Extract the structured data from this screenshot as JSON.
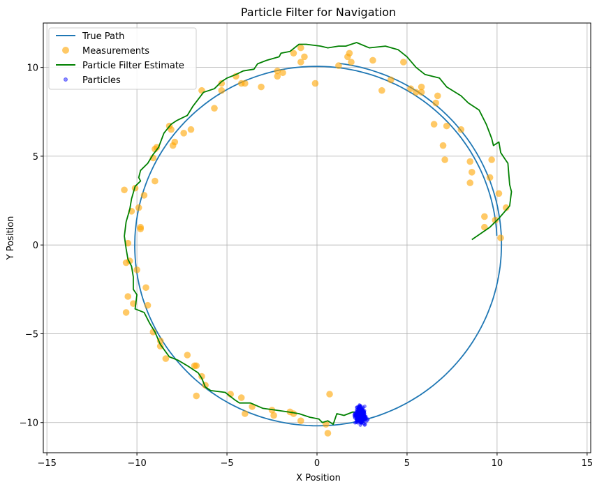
{
  "chart_data": {
    "type": "scatter",
    "title": "Particle Filter for Navigation",
    "xlabel": "X Position",
    "ylabel": "Y Position",
    "xlim": [
      -15.2,
      15.2
    ],
    "ylim": [
      -11.7,
      12.5
    ],
    "xticks": [
      -15,
      -10,
      -5,
      0,
      5,
      10,
      15
    ],
    "yticks": [
      -10,
      -5,
      0,
      5,
      10
    ],
    "xtick_labels": [
      "−15",
      "−10",
      "−5",
      "0",
      "5",
      "10",
      "15"
    ],
    "ytick_labels": [
      "−10",
      "−5",
      "0",
      "5",
      "10"
    ],
    "grid": true,
    "legend_position": "upper-left",
    "colors": {
      "true_path": "#1f77b4",
      "measurements": "#ffa500",
      "estimate": "#008000",
      "particles": "#0000ff",
      "grid": "#b0b0b0"
    },
    "legend": [
      {
        "label": "True Path",
        "kind": "line",
        "color": "#1f77b4"
      },
      {
        "label": "Measurements",
        "kind": "marker",
        "color": "#ffa500"
      },
      {
        "label": "Particle Filter Estimate",
        "kind": "line",
        "color": "#008000"
      },
      {
        "label": "Particles",
        "kind": "small-marker",
        "color": "#0000ff"
      }
    ],
    "true_path": {
      "name": "True Path",
      "center": [
        0,
        0
      ],
      "radius_start": 10.0,
      "radius_end": 10.3,
      "theta_start_deg": 3,
      "theta_end_deg": 443
    },
    "measurements": {
      "name": "Measurements",
      "points": [
        [
          10.2,
          0.4
        ],
        [
          9.3,
          1.0
        ],
        [
          9.3,
          1.6
        ],
        [
          9.9,
          1.4
        ],
        [
          10.5,
          2.1
        ],
        [
          10.1,
          2.9
        ],
        [
          9.6,
          3.8
        ],
        [
          8.5,
          3.5
        ],
        [
          8.6,
          4.1
        ],
        [
          8.5,
          4.7
        ],
        [
          9.7,
          4.8
        ],
        [
          7.1,
          4.8
        ],
        [
          7.0,
          5.6
        ],
        [
          8.0,
          6.5
        ],
        [
          6.5,
          6.8
        ],
        [
          7.2,
          6.7
        ],
        [
          6.6,
          8.0
        ],
        [
          6.7,
          8.4
        ],
        [
          5.5,
          8.6
        ],
        [
          5.8,
          8.6
        ],
        [
          5.8,
          8.9
        ],
        [
          5.2,
          8.8
        ],
        [
          3.6,
          8.7
        ],
        [
          4.1,
          9.3
        ],
        [
          4.8,
          10.3
        ],
        [
          3.1,
          10.4
        ],
        [
          1.9,
          10.3
        ],
        [
          1.7,
          10.6
        ],
        [
          1.8,
          10.8
        ],
        [
          1.2,
          10.1
        ],
        [
          -0.1,
          9.1
        ],
        [
          -0.7,
          10.6
        ],
        [
          -0.9,
          10.3
        ],
        [
          -0.9,
          11.1
        ],
        [
          -1.3,
          10.8
        ],
        [
          -1.9,
          9.7
        ],
        [
          -2.2,
          9.8
        ],
        [
          -2.2,
          9.5
        ],
        [
          -3.1,
          8.9
        ],
        [
          -4.0,
          9.1
        ],
        [
          -4.2,
          9.1
        ],
        [
          -4.5,
          9.5
        ],
        [
          -5.3,
          8.7
        ],
        [
          -5.3,
          9.1
        ],
        [
          -5.7,
          7.7
        ],
        [
          -6.4,
          8.7
        ],
        [
          -7.0,
          6.5
        ],
        [
          -7.4,
          6.3
        ],
        [
          -7.9,
          5.8
        ],
        [
          -8.0,
          5.6
        ],
        [
          -8.2,
          6.7
        ],
        [
          -8.1,
          6.5
        ],
        [
          -9.0,
          5.4
        ],
        [
          -8.9,
          5.5
        ],
        [
          -9.1,
          4.9
        ],
        [
          -9.0,
          3.6
        ],
        [
          -9.6,
          2.8
        ],
        [
          -10.1,
          3.2
        ],
        [
          -10.7,
          3.1
        ],
        [
          -9.9,
          2.1
        ],
        [
          -10.3,
          1.9
        ],
        [
          -9.8,
          1.0
        ],
        [
          -9.8,
          0.9
        ],
        [
          -10.5,
          0.1
        ],
        [
          -10.4,
          -0.9
        ],
        [
          -10.6,
          -1.0
        ],
        [
          -10.0,
          -1.4
        ],
        [
          -9.5,
          -2.4
        ],
        [
          -10.5,
          -2.9
        ],
        [
          -10.2,
          -3.3
        ],
        [
          -9.4,
          -3.4
        ],
        [
          -10.6,
          -3.8
        ],
        [
          -9.1,
          -4.9
        ],
        [
          -8.7,
          -5.4
        ],
        [
          -8.7,
          -5.7
        ],
        [
          -8.4,
          -6.4
        ],
        [
          -7.2,
          -6.2
        ],
        [
          -6.8,
          -6.8
        ],
        [
          -6.7,
          -6.8
        ],
        [
          -6.4,
          -7.4
        ],
        [
          -6.2,
          -7.9
        ],
        [
          -6.7,
          -8.5
        ],
        [
          -4.8,
          -8.4
        ],
        [
          -4.2,
          -8.6
        ],
        [
          -4.0,
          -9.5
        ],
        [
          -3.6,
          -9.1
        ],
        [
          -2.5,
          -9.3
        ],
        [
          -2.4,
          -9.6
        ],
        [
          -1.5,
          -9.4
        ],
        [
          -1.3,
          -9.5
        ],
        [
          -0.9,
          -9.9
        ],
        [
          0.5,
          -10.1
        ],
        [
          0.6,
          -10.6
        ],
        [
          0.7,
          -8.4
        ]
      ]
    },
    "estimate": {
      "name": "Particle Filter Estimate",
      "points": [
        [
          8.6,
          0.3
        ],
        [
          9.6,
          1.0
        ],
        [
          10.1,
          1.5
        ],
        [
          10.7,
          2.2
        ],
        [
          10.8,
          3.0
        ],
        [
          10.7,
          3.4
        ],
        [
          10.6,
          4.6
        ],
        [
          10.4,
          4.9
        ],
        [
          10.2,
          5.2
        ],
        [
          10.1,
          5.8
        ],
        [
          9.8,
          5.6
        ],
        [
          9.7,
          6.0
        ],
        [
          9.4,
          6.8
        ],
        [
          9.0,
          7.6
        ],
        [
          8.4,
          8.0
        ],
        [
          8.0,
          8.4
        ],
        [
          7.2,
          8.9
        ],
        [
          6.8,
          9.4
        ],
        [
          6.0,
          9.6
        ],
        [
          5.5,
          10.0
        ],
        [
          5.0,
          10.6
        ],
        [
          4.5,
          11.0
        ],
        [
          3.8,
          11.2
        ],
        [
          2.9,
          11.1
        ],
        [
          2.2,
          11.4
        ],
        [
          1.9,
          11.3
        ],
        [
          1.6,
          11.2
        ],
        [
          1.2,
          11.2
        ],
        [
          0.6,
          11.1
        ],
        [
          0.2,
          11.2
        ],
        [
          -0.6,
          11.3
        ],
        [
          -1.0,
          11.3
        ],
        [
          -1.5,
          10.9
        ],
        [
          -2.0,
          10.8
        ],
        [
          -2.1,
          10.6
        ],
        [
          -2.8,
          10.4
        ],
        [
          -3.3,
          10.2
        ],
        [
          -3.5,
          9.9
        ],
        [
          -4.1,
          9.8
        ],
        [
          -4.5,
          9.6
        ],
        [
          -5.0,
          9.4
        ],
        [
          -5.3,
          9.2
        ],
        [
          -5.7,
          8.8
        ],
        [
          -6.3,
          8.6
        ],
        [
          -6.9,
          7.8
        ],
        [
          -7.2,
          7.3
        ],
        [
          -7.8,
          7.0
        ],
        [
          -8.1,
          6.8
        ],
        [
          -8.5,
          6.3
        ],
        [
          -8.8,
          5.5
        ],
        [
          -9.1,
          5.1
        ],
        [
          -9.4,
          4.6
        ],
        [
          -9.8,
          4.2
        ],
        [
          -9.9,
          3.8
        ],
        [
          -9.8,
          3.6
        ],
        [
          -10.1,
          3.3
        ],
        [
          -10.3,
          2.6
        ],
        [
          -10.4,
          2.0
        ],
        [
          -10.6,
          1.3
        ],
        [
          -10.7,
          0.5
        ],
        [
          -10.6,
          -0.2
        ],
        [
          -10.5,
          -0.8
        ],
        [
          -10.3,
          -1.2
        ],
        [
          -10.2,
          -1.8
        ],
        [
          -10.2,
          -2.5
        ],
        [
          -10.0,
          -2.8
        ],
        [
          -10.1,
          -3.6
        ],
        [
          -9.6,
          -3.8
        ],
        [
          -9.3,
          -4.4
        ],
        [
          -9.0,
          -4.9
        ],
        [
          -8.7,
          -5.6
        ],
        [
          -8.2,
          -6.3
        ],
        [
          -7.7,
          -6.5
        ],
        [
          -7.2,
          -6.8
        ],
        [
          -6.6,
          -7.2
        ],
        [
          -6.4,
          -7.5
        ],
        [
          -6.2,
          -8.0
        ],
        [
          -5.9,
          -8.2
        ],
        [
          -5.1,
          -8.3
        ],
        [
          -4.6,
          -8.7
        ],
        [
          -4.3,
          -8.9
        ],
        [
          -3.7,
          -8.9
        ],
        [
          -3.0,
          -9.2
        ],
        [
          -2.3,
          -9.3
        ],
        [
          -1.6,
          -9.4
        ],
        [
          -1.0,
          -9.5
        ],
        [
          -0.4,
          -9.7
        ],
        [
          0.1,
          -9.8
        ],
        [
          0.3,
          -10.0
        ],
        [
          0.6,
          -9.9
        ],
        [
          0.9,
          -10.1
        ],
        [
          1.1,
          -9.5
        ],
        [
          1.5,
          -9.6
        ],
        [
          2.0,
          -9.4
        ],
        [
          2.3,
          -9.5
        ]
      ]
    },
    "particles": {
      "name": "Particles",
      "center": [
        2.4,
        -9.6
      ],
      "spread_x": 0.22,
      "spread_y": 0.3,
      "count": 300
    }
  }
}
